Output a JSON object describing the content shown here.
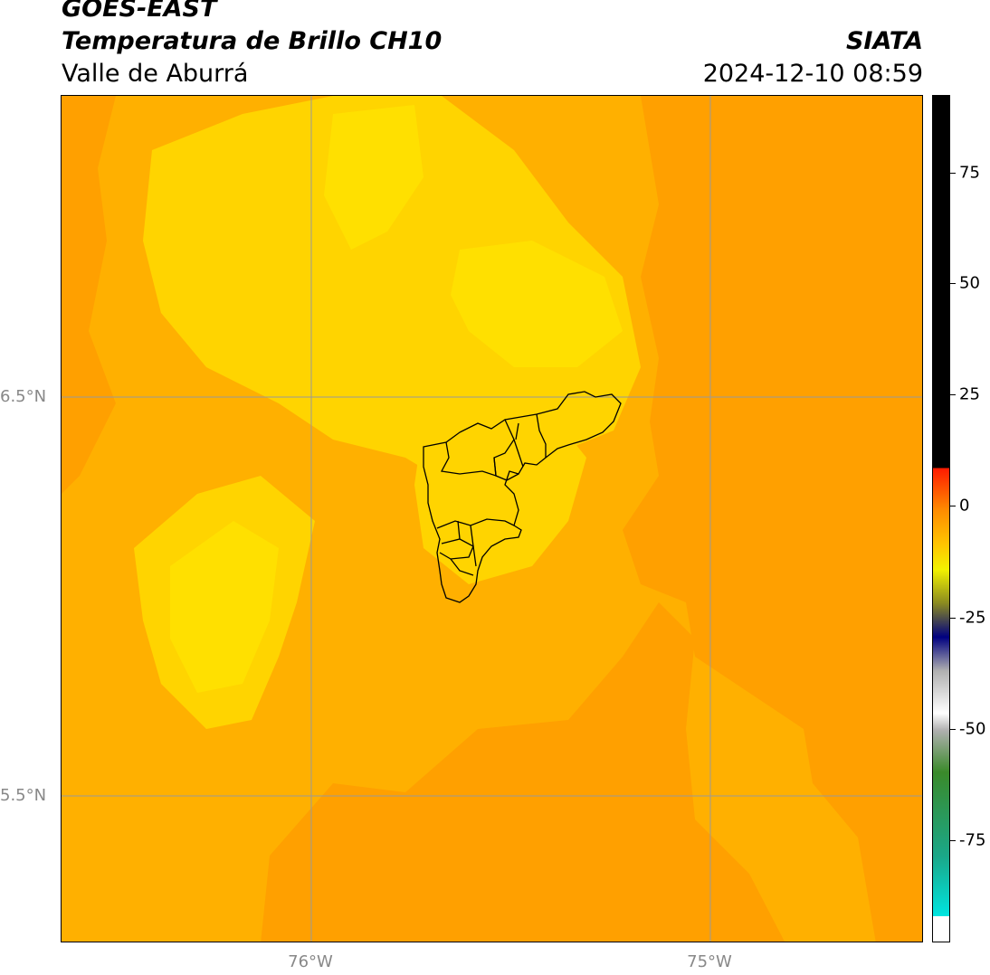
{
  "header": {
    "satellite": "GOES-EAST",
    "product": "Temperatura de Brillo CH10",
    "region": "Valle de Aburrá",
    "organization": "SIATA",
    "datetime": "2024-12-10 08:59"
  },
  "axes": {
    "lat_ticks": [
      "6.5°N",
      "5.5°N"
    ],
    "lon_ticks": [
      "76°W",
      "75°W"
    ]
  },
  "colorbar": {
    "ticks": [
      "75",
      "50",
      "25",
      "0",
      "-25",
      "-50",
      "-75"
    ],
    "colors": {
      "cyan": "#00e5e0",
      "teal": "#1aa88a",
      "green": "#3a8a2a",
      "white": "#ffffff",
      "gray": "#b0b0b0",
      "navy": "#000080",
      "olive": "#8a8a20",
      "yellow": "#f2f200",
      "gold": "#ffc400",
      "orange": "#ff8c00",
      "red": "#ff1a00",
      "black": "#000000"
    }
  },
  "map_colors": {
    "background": "#ffb000",
    "dark_orange": "#ffa000",
    "yellow": "#ffd400",
    "bright_yellow": "#ffe000",
    "gridline": "#9a9a9a",
    "boundary": "#000000"
  }
}
